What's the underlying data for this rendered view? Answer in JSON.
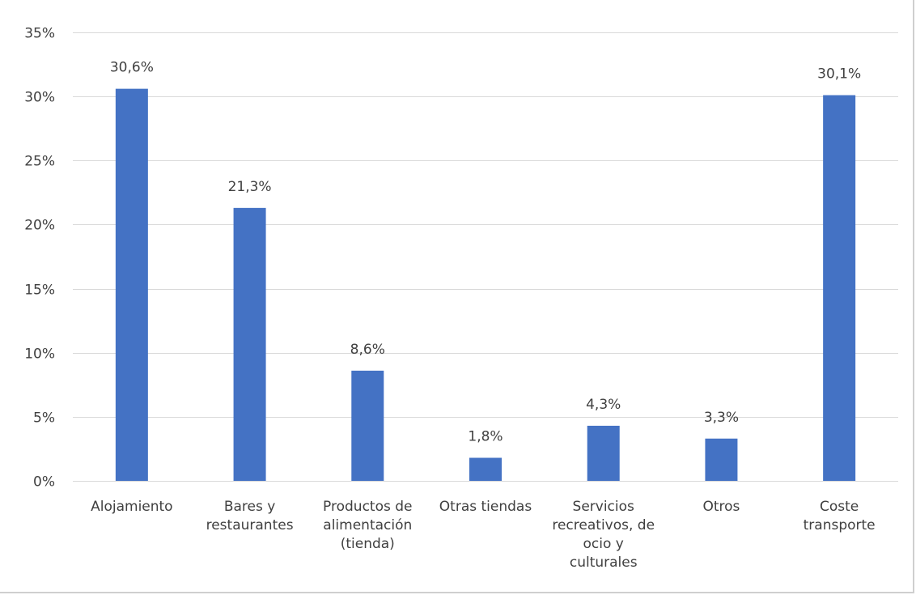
{
  "chart_data": {
    "type": "bar",
    "categories": [
      [
        "Alojamiento"
      ],
      [
        "Bares y",
        "restaurantes"
      ],
      [
        "Productos de",
        "alimentación",
        "(tienda)"
      ],
      [
        "Otras tiendas"
      ],
      [
        "Servicios",
        "recreativos, de",
        "ocio y",
        "culturales"
      ],
      [
        "Otros"
      ],
      [
        "Coste",
        "transporte"
      ]
    ],
    "values": [
      30.6,
      21.3,
      8.6,
      1.8,
      4.3,
      3.3,
      30.1
    ],
    "data_labels": [
      "30,6%",
      "21,3%",
      "8,6%",
      "1,8%",
      "4,3%",
      "3,3%",
      "30,1%"
    ],
    "y_ticks": [
      0,
      5,
      10,
      15,
      20,
      25,
      30,
      35
    ],
    "y_tick_labels": [
      "0%",
      "5%",
      "10%",
      "15%",
      "20%",
      "25%",
      "30%",
      "35%"
    ],
    "ylim": [
      0,
      35
    ],
    "title": "",
    "xlabel": "",
    "ylabel": "",
    "grid": true,
    "legend": "none",
    "bar_color": "#4472C4"
  }
}
